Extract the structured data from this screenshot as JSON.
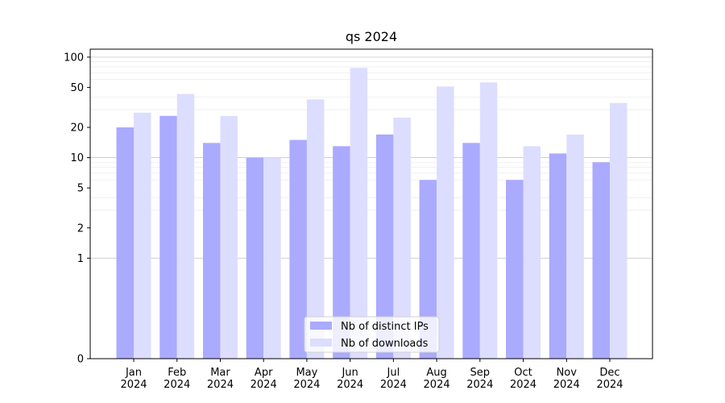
{
  "chart_data": {
    "type": "bar",
    "title": "qs 2024",
    "xlabel": "",
    "ylabel": "",
    "categories": [
      [
        "Jan",
        "2024"
      ],
      [
        "Feb",
        "2024"
      ],
      [
        "Mar",
        "2024"
      ],
      [
        "Apr",
        "2024"
      ],
      [
        "May",
        "2024"
      ],
      [
        "Jun",
        "2024"
      ],
      [
        "Jul",
        "2024"
      ],
      [
        "Aug",
        "2024"
      ],
      [
        "Sep",
        "2024"
      ],
      [
        "Oct",
        "2024"
      ],
      [
        "Nov",
        "2024"
      ],
      [
        "Dec",
        "2024"
      ]
    ],
    "series": [
      {
        "name": "Nb of distinct IPs",
        "color": "#aaaaff",
        "values": [
          20,
          26,
          14,
          10,
          15,
          13,
          17,
          6,
          14,
          6,
          11,
          9
        ]
      },
      {
        "name": "Nb of downloads",
        "color": "#ddddff",
        "values": [
          28,
          43,
          26,
          10,
          38,
          78,
          25,
          51,
          56,
          13,
          17,
          35
        ]
      }
    ],
    "y_scale": "symlog",
    "ylim": [
      0,
      120
    ],
    "y_ticks": [
      "0",
      "1",
      "2",
      "5",
      "10",
      "20",
      "50",
      "100"
    ],
    "grid": "y-major-and-minor",
    "legend_position": "lower-center"
  }
}
